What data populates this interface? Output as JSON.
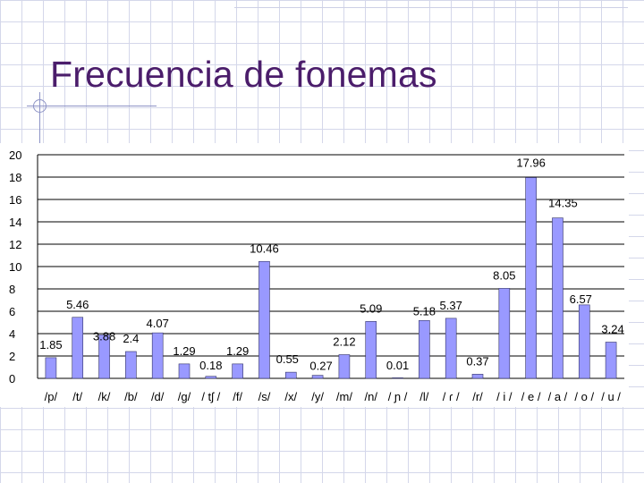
{
  "slide": {
    "title": "Frecuencia de fonemas"
  },
  "colors": {
    "bar_fill": "#9999ff",
    "bar_stroke": "#333366",
    "title": "#4b1d6b",
    "gridline": "#000000"
  },
  "chart_data": {
    "type": "bar",
    "title": "",
    "xlabel": "",
    "ylabel": "",
    "ylim": [
      0,
      20
    ],
    "y_ticks": [
      0,
      2,
      4,
      6,
      8,
      10,
      12,
      14,
      16,
      18,
      20
    ],
    "grid": true,
    "legend": "none",
    "categories": [
      "/p/",
      "/t/",
      "/k/",
      "/b/",
      "/d/",
      "/g/",
      "/tʃ/",
      "/f/",
      "/s/",
      "/x/",
      "/y/",
      "/m/",
      "/n/",
      "/ɲ/",
      "/l/",
      "/ɾ/",
      "/r/",
      "/i/",
      "/e/",
      "/a/",
      "/o/",
      "/u/"
    ],
    "category_labels": [
      "/p/",
      "/t/",
      "/k/",
      "/b/",
      "/d/",
      "/g/",
      "/ tʃ /",
      "/f/",
      "/s/",
      "/x/",
      "/y/",
      "/m/",
      "/n/",
      "/ ɲ /",
      "/l/",
      "/ ɾ /",
      "/r/",
      "/ i /",
      "/ e /",
      "/ a /",
      "/ o /",
      "/ u /"
    ],
    "values": [
      1.85,
      5.46,
      3.88,
      2.4,
      4.07,
      1.29,
      0.18,
      1.29,
      10.46,
      0.55,
      0.27,
      2.12,
      5.09,
      0.01,
      5.18,
      5.37,
      0.37,
      8.05,
      17.96,
      14.35,
      6.57,
      3.24
    ],
    "data_labels": [
      "1.85",
      "5.46",
      "3.88",
      "2.4",
      "4.07",
      "1.29",
      "0.18",
      "1.29",
      "10.46",
      "0.55",
      "0.27",
      "2.12",
      "5.09",
      "0.01",
      "5.18",
      "5.37",
      "0.37",
      "8.05",
      "17.96",
      "14.35",
      "6.57",
      "3.24"
    ]
  }
}
